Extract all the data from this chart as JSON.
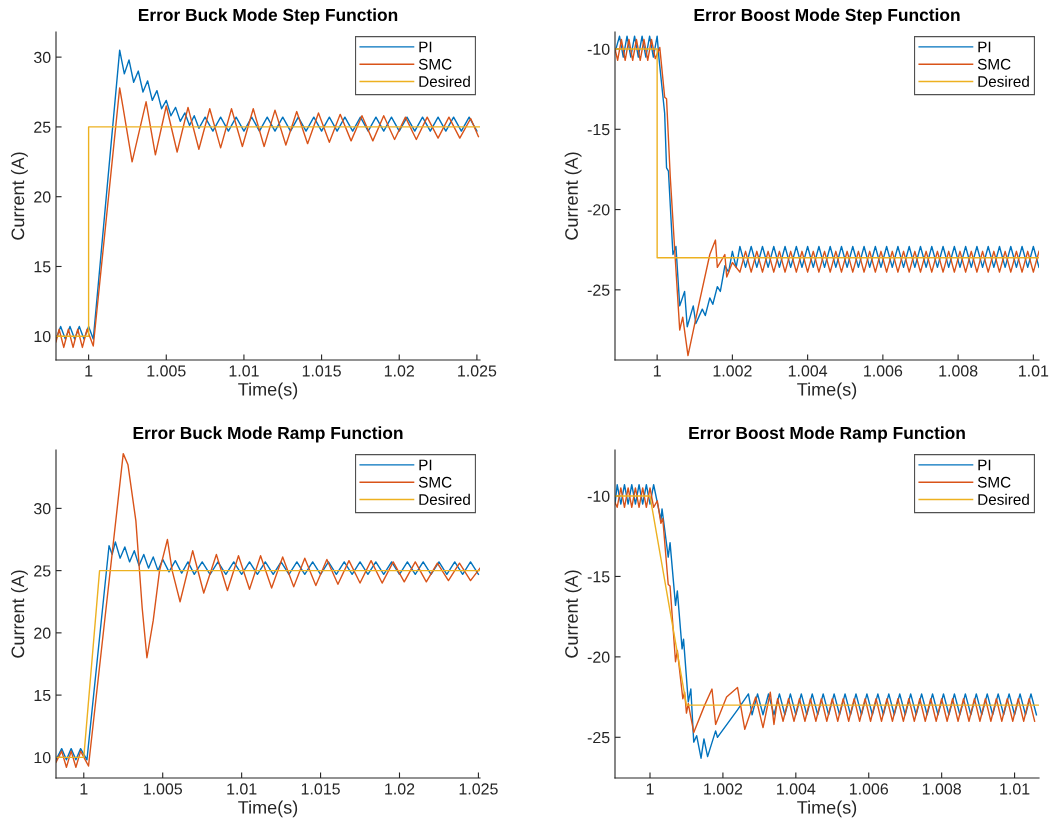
{
  "chart_data": [
    {
      "type": "line",
      "title": "Error Buck Mode Step Function",
      "xlabel": "Time(s)",
      "ylabel": "Current (A)",
      "xlim": [
        0.9979,
        1.0252
      ],
      "ylim": [
        8.3,
        31.8
      ],
      "xticks": [
        1,
        1.005,
        1.01,
        1.015,
        1.02,
        1.025
      ],
      "yticks": [
        10,
        15,
        20,
        25,
        30
      ],
      "legend": "top right",
      "grid": false,
      "series": [
        {
          "name": "PI",
          "color": "#0072bd",
          "x": [
            0.9979,
            0.9982,
            0.9985,
            0.9988,
            0.9991,
            0.9994,
            0.9997,
            1.0,
            1.0003,
            1.002,
            1.0023,
            1.0026,
            1.0029,
            1.0032,
            1.0035,
            1.0038,
            1.0041,
            1.0044,
            1.0047,
            1.005,
            1.0053,
            1.0056,
            1.0059,
            1.0062,
            1.0065,
            1.0068,
            1.0071,
            1.0075,
            1.008,
            1.0085,
            1.009,
            1.0095,
            1.01,
            1.0105,
            1.011,
            1.0115,
            1.012,
            1.0125,
            1.013,
            1.0135,
            1.014,
            1.0145,
            1.015,
            1.0155,
            1.016,
            1.0165,
            1.017,
            1.0175,
            1.018,
            1.0185,
            1.019,
            1.0195,
            1.02,
            1.0205,
            1.021,
            1.0215,
            1.022,
            1.0225,
            1.023,
            1.0235,
            1.024,
            1.0245,
            1.025
          ],
          "values": [
            9.8,
            10.7,
            9.8,
            10.7,
            9.8,
            10.7,
            9.8,
            10.7,
            9.8,
            30.5,
            28.8,
            29.8,
            28.2,
            29.0,
            27.5,
            28.3,
            26.9,
            27.6,
            26.3,
            26.9,
            25.8,
            26.4,
            25.4,
            26.0,
            25.1,
            25.8,
            24.9,
            25.7,
            24.7,
            25.7,
            24.7,
            25.7,
            24.7,
            25.7,
            24.7,
            25.7,
            24.7,
            25.7,
            24.7,
            25.7,
            24.7,
            25.7,
            24.7,
            25.7,
            24.7,
            25.7,
            24.7,
            25.7,
            24.7,
            25.7,
            24.7,
            25.7,
            24.7,
            25.7,
            24.7,
            25.7,
            24.7,
            25.7,
            24.7,
            25.7,
            24.7,
            25.7,
            24.7
          ]
        },
        {
          "name": "SMC",
          "color": "#d95319",
          "x": [
            0.9979,
            0.9981,
            0.9984,
            0.9987,
            0.999,
            0.9993,
            0.9996,
            0.9999,
            1.0003,
            1.002,
            1.0022,
            1.0028,
            1.0037,
            1.0043,
            1.005,
            1.0057,
            1.0064,
            1.0071,
            1.0078,
            1.0085,
            1.0092,
            1.0099,
            1.0106,
            1.0113,
            1.012,
            1.0127,
            1.0134,
            1.0141,
            1.0148,
            1.0155,
            1.0162,
            1.0169,
            1.0176,
            1.0183,
            1.019,
            1.0197,
            1.0204,
            1.0211,
            1.0218,
            1.0225,
            1.0232,
            1.0239,
            1.0246,
            1.0251
          ],
          "values": [
            9.6,
            10.5,
            9.2,
            10.5,
            9.2,
            10.5,
            9.2,
            10.5,
            9.3,
            27.8,
            26.5,
            22.5,
            26.8,
            23.0,
            26.5,
            23.2,
            26.4,
            23.4,
            26.3,
            23.5,
            26.3,
            23.6,
            26.3,
            23.6,
            26.2,
            23.7,
            26.1,
            23.8,
            26.0,
            23.9,
            25.9,
            24.0,
            25.8,
            24.0,
            25.8,
            24.1,
            25.7,
            24.1,
            25.7,
            24.2,
            25.7,
            24.2,
            25.6,
            24.3
          ]
        },
        {
          "name": "Desired",
          "color": "#edb120",
          "x": [
            0.9979,
            1.0,
            1.0,
            1.0252
          ],
          "values": [
            10,
            10,
            25,
            25
          ]
        }
      ]
    },
    {
      "type": "line",
      "title": "Error Boost Mode Step Function",
      "xlabel": "Time(s)",
      "ylabel": "Current (A)",
      "xlim": [
        0.99888,
        1.01015
      ],
      "ylim": [
        -29.37,
        -8.94
      ],
      "xticks": [
        1,
        1.002,
        1.004,
        1.006,
        1.008,
        1.01
      ],
      "yticks": [
        -25,
        -20,
        -15,
        -10
      ],
      "legend": "top right",
      "grid": false,
      "series": [
        {
          "name": "PI",
          "color": "#0072bd",
          "x": [
            0.99888,
            0.999,
            0.9991,
            0.9992,
            0.9993,
            0.9994,
            0.9995,
            0.9996,
            0.9997,
            0.9998,
            0.9999,
            1.0,
            1.00005,
            1.0002,
            1.00025,
            1.0003,
            1.00042,
            1.0005,
            1.0006,
            1.00073,
            1.0008,
            1.00096,
            1.00103,
            1.0012,
            1.00128,
            1.0014,
            1.00148,
            1.0016,
            1.00168,
            1.0018,
            1.0019,
            1.002,
            1.0021,
            1.0022,
            1.00235,
            1.0025,
            1.00265,
            1.0028,
            1.00295,
            1.0031,
            1.00325,
            1.0034,
            1.00355,
            1.0037,
            1.00385,
            1.004,
            1.00415,
            1.0043,
            1.00445,
            1.0046,
            1.00475,
            1.0049,
            1.00505,
            1.0052,
            1.00535,
            1.0055,
            1.00565,
            1.0058,
            1.00595,
            1.0061,
            1.00625,
            1.0064,
            1.00655,
            1.0067,
            1.00685,
            1.007,
            1.00715,
            1.0073,
            1.00745,
            1.0076,
            1.00775,
            1.0079,
            1.00805,
            1.0082,
            1.00835,
            1.0085,
            1.00865,
            1.0088,
            1.00895,
            1.0091,
            1.00925,
            1.0094,
            1.00955,
            1.0097,
            1.00985,
            1.01,
            1.01015
          ],
          "values": [
            -10.2,
            -9.2,
            -10.5,
            -9.2,
            -10.5,
            -9.2,
            -10.5,
            -9.2,
            -10.5,
            -9.2,
            -10.5,
            -9.2,
            -10.6,
            -14.0,
            -17.4,
            -17.6,
            -22.8,
            -22.3,
            -26.0,
            -25.1,
            -27.3,
            -26.0,
            -27.1,
            -26.2,
            -26.6,
            -25.5,
            -25.9,
            -24.8,
            -25.1,
            -23.5,
            -23.9,
            -22.6,
            -23.6,
            -22.3,
            -23.6,
            -22.3,
            -23.6,
            -22.3,
            -23.6,
            -22.3,
            -23.6,
            -22.3,
            -23.6,
            -22.3,
            -23.6,
            -22.3,
            -23.6,
            -22.3,
            -23.6,
            -22.3,
            -23.6,
            -22.3,
            -23.6,
            -22.3,
            -23.6,
            -22.3,
            -23.6,
            -22.3,
            -23.6,
            -22.3,
            -23.6,
            -22.3,
            -23.6,
            -22.3,
            -23.6,
            -22.3,
            -23.6,
            -22.3,
            -23.6,
            -22.3,
            -23.6,
            -22.3,
            -23.6,
            -22.3,
            -23.6,
            -22.3,
            -23.6,
            -22.3,
            -23.6,
            -22.3,
            -23.6,
            -22.3,
            -23.6,
            -22.3,
            -23.6,
            -22.3,
            -23.6
          ]
        },
        {
          "name": "SMC",
          "color": "#d95319",
          "x": [
            0.99888,
            0.99895,
            0.99905,
            0.99915,
            0.99925,
            0.99935,
            0.99945,
            0.99955,
            0.99965,
            0.99975,
            0.99985,
            0.99995,
            1.00007,
            1.0002,
            1.00025,
            1.00035,
            1.00048,
            1.0006,
            1.00068,
            1.00082,
            1.0011,
            1.0014,
            1.00155,
            1.0016,
            1.0018,
            1.00185,
            1.002,
            1.0022,
            1.00235,
            1.0025,
            1.00265,
            1.0028,
            1.00295,
            1.0031,
            1.00325,
            1.0034,
            1.00355,
            1.0037,
            1.00385,
            1.004,
            1.00415,
            1.0043,
            1.00445,
            1.0046,
            1.00475,
            1.0049,
            1.00505,
            1.0052,
            1.00535,
            1.0055,
            1.00565,
            1.0058,
            1.00595,
            1.0061,
            1.00625,
            1.0064,
            1.00655,
            1.0067,
            1.00685,
            1.007,
            1.00715,
            1.0073,
            1.00745,
            1.0076,
            1.00775,
            1.0079,
            1.00805,
            1.0082,
            1.00835,
            1.0085,
            1.00865,
            1.0088,
            1.00895,
            1.0091,
            1.00925,
            1.0094,
            1.00955,
            1.0097,
            1.00985,
            1.01,
            1.01015
          ],
          "values": [
            -10.0,
            -10.7,
            -9.4,
            -10.7,
            -9.4,
            -10.7,
            -9.4,
            -10.7,
            -9.4,
            -10.7,
            -9.4,
            -10.6,
            -9.9,
            -13.0,
            -13.1,
            -18.0,
            -23.0,
            -27.5,
            -26.7,
            -29.1,
            -26.0,
            -22.8,
            -21.9,
            -23.6,
            -22.8,
            -24.2,
            -23.3,
            -23.9,
            -22.6,
            -23.9,
            -22.6,
            -23.9,
            -22.6,
            -23.9,
            -22.6,
            -23.9,
            -22.6,
            -23.9,
            -22.6,
            -23.9,
            -22.6,
            -23.9,
            -22.6,
            -23.9,
            -22.6,
            -23.9,
            -22.6,
            -23.9,
            -22.6,
            -23.9,
            -22.6,
            -23.9,
            -22.6,
            -23.9,
            -22.6,
            -23.9,
            -22.6,
            -23.9,
            -22.6,
            -23.9,
            -22.6,
            -23.9,
            -22.6,
            -23.9,
            -22.6,
            -23.9,
            -22.6,
            -23.9,
            -22.6,
            -23.9,
            -22.6,
            -23.9,
            -22.6,
            -23.9,
            -22.6,
            -23.9,
            -22.6,
            -23.9,
            -22.6,
            -23.9,
            -22.6
          ]
        },
        {
          "name": "Desired",
          "color": "#edb120",
          "x": [
            0.99888,
            1.0,
            1.0,
            1.01015
          ],
          "values": [
            -10,
            -10,
            -23,
            -23
          ]
        }
      ]
    },
    {
      "type": "line",
      "title": "Error Buck Mode Ramp Function",
      "xlabel": "Time(s)",
      "ylabel": "Current (A)",
      "xlim": [
        0.99824,
        1.0251
      ],
      "ylim": [
        8.34,
        34.69
      ],
      "xticks": [
        1,
        1.005,
        1.01,
        1.015,
        1.02,
        1.025
      ],
      "yticks": [
        10,
        15,
        20,
        25,
        30
      ],
      "legend": "top right",
      "grid": false,
      "series": [
        {
          "name": "PI",
          "color": "#0072bd",
          "x": [
            0.99824,
            0.9986,
            0.9989,
            0.9992,
            0.9995,
            0.9998,
            1.0002,
            1.0016,
            1.0018,
            1.002,
            1.0023,
            1.0026,
            1.0029,
            1.0032,
            1.0035,
            1.0038,
            1.0041,
            1.0044,
            1.0047,
            1.005,
            1.0054,
            1.0058,
            1.0062,
            1.0066,
            1.007,
            1.0075,
            1.008,
            1.0085,
            1.009,
            1.0095,
            1.01,
            1.0105,
            1.011,
            1.0115,
            1.012,
            1.0125,
            1.013,
            1.0135,
            1.014,
            1.0145,
            1.015,
            1.0155,
            1.016,
            1.0165,
            1.017,
            1.0175,
            1.018,
            1.0185,
            1.019,
            1.0195,
            1.02,
            1.0205,
            1.021,
            1.0215,
            1.022,
            1.0225,
            1.023,
            1.0235,
            1.024,
            1.0245,
            1.025
          ],
          "values": [
            9.8,
            10.7,
            9.8,
            10.7,
            9.8,
            10.7,
            9.8,
            27.0,
            26.3,
            27.3,
            26.0,
            26.9,
            25.7,
            26.6,
            25.4,
            26.3,
            25.2,
            26.1,
            25.0,
            25.9,
            24.9,
            25.8,
            24.8,
            25.7,
            24.7,
            25.7,
            24.7,
            25.7,
            24.7,
            25.7,
            24.7,
            25.7,
            24.7,
            25.7,
            24.7,
            25.7,
            24.7,
            25.7,
            24.7,
            25.7,
            24.7,
            25.7,
            24.7,
            25.7,
            24.7,
            25.7,
            24.7,
            25.7,
            24.7,
            25.7,
            24.7,
            25.7,
            24.7,
            25.7,
            24.7,
            25.7,
            24.7,
            25.7,
            24.7,
            25.7,
            24.7
          ]
        },
        {
          "name": "SMC",
          "color": "#d95319",
          "x": [
            0.99824,
            0.9986,
            0.9989,
            0.9992,
            0.9995,
            0.9998,
            1.0003,
            1.0025,
            1.0028,
            1.0033,
            1.0037,
            1.004,
            1.0044,
            1.0048,
            1.0053,
            1.0056,
            1.0061,
            1.0069,
            1.0076,
            1.0084,
            1.0091,
            1.0098,
            1.0105,
            1.0112,
            1.0119,
            1.0126,
            1.0133,
            1.014,
            1.0147,
            1.0154,
            1.0161,
            1.0168,
            1.0175,
            1.0182,
            1.0189,
            1.0196,
            1.0203,
            1.021,
            1.0217,
            1.0224,
            1.0231,
            1.0238,
            1.0245,
            1.0251
          ],
          "values": [
            9.6,
            10.5,
            9.2,
            10.5,
            9.2,
            10.5,
            9.3,
            34.4,
            33.5,
            29.0,
            22.0,
            18.0,
            21.0,
            25.0,
            27.5,
            25.0,
            22.5,
            26.6,
            23.2,
            26.3,
            23.4,
            26.2,
            23.5,
            26.2,
            23.6,
            26.1,
            23.7,
            26.0,
            23.8,
            25.9,
            23.9,
            25.8,
            24.0,
            25.8,
            24.0,
            25.7,
            24.1,
            25.7,
            24.1,
            25.6,
            24.2,
            25.6,
            24.2,
            25.2
          ]
        },
        {
          "name": "Desired",
          "color": "#edb120",
          "x": [
            0.99824,
            1.0,
            1.001,
            1.0251
          ],
          "values": [
            10,
            10,
            25,
            25
          ]
        }
      ]
    },
    {
      "type": "line",
      "title": "Error Boost Mode Ramp Function",
      "xlabel": "Time(s)",
      "ylabel": "Current (A)",
      "xlim": [
        0.99904,
        1.01067
      ],
      "ylim": [
        -27.53,
        -7.14
      ],
      "xticks": [
        1,
        1.002,
        1.004,
        1.006,
        1.008,
        1.01
      ],
      "yticks": [
        -25,
        -20,
        -15,
        -10
      ],
      "legend": "top right",
      "grid": false,
      "series": [
        {
          "name": "PI",
          "color": "#0072bd",
          "x": [
            0.99904,
            0.9991,
            0.9992,
            0.9993,
            0.9994,
            0.9995,
            0.9996,
            0.9997,
            0.9998,
            0.9999,
            1.0,
            1.0001,
            1.0003,
            1.00033,
            1.0005,
            1.00055,
            1.0007,
            1.00075,
            1.00088,
            1.00092,
            1.00105,
            1.00112,
            1.0012,
            1.00128,
            1.0014,
            1.00148,
            1.00158,
            1.0018,
            1.00185,
            1.0024,
            1.0027,
            1.0028,
            1.00295,
            1.0031,
            1.00325,
            1.0034,
            1.00355,
            1.0037,
            1.00385,
            1.004,
            1.00415,
            1.0043,
            1.00445,
            1.0046,
            1.00475,
            1.0049,
            1.00505,
            1.0052,
            1.00535,
            1.0055,
            1.00565,
            1.0058,
            1.00595,
            1.0061,
            1.00625,
            1.0064,
            1.00655,
            1.0067,
            1.00685,
            1.007,
            1.00715,
            1.0073,
            1.00745,
            1.0076,
            1.00775,
            1.0079,
            1.00805,
            1.0082,
            1.00835,
            1.0085,
            1.00865,
            1.0088,
            1.00895,
            1.0091,
            1.00925,
            1.0094,
            1.00955,
            1.0097,
            1.00985,
            1.01,
            1.01015,
            1.0103,
            1.01045,
            1.0106
          ],
          "values": [
            -10.5,
            -9.3,
            -10.5,
            -9.3,
            -10.5,
            -9.3,
            -10.5,
            -9.3,
            -10.5,
            -9.3,
            -10.5,
            -9.3,
            -11.5,
            -10.8,
            -13.8,
            -12.9,
            -16.8,
            -15.9,
            -19.5,
            -18.9,
            -22.8,
            -22.0,
            -25.3,
            -24.9,
            -26.3,
            -25.1,
            -26.2,
            -24.6,
            -25.0,
            -23.3,
            -22.3,
            -23.6,
            -22.3,
            -23.6,
            -22.3,
            -23.6,
            -22.3,
            -23.6,
            -22.3,
            -23.6,
            -22.3,
            -23.6,
            -22.3,
            -23.6,
            -22.3,
            -23.6,
            -22.3,
            -23.6,
            -22.3,
            -23.6,
            -22.3,
            -23.6,
            -22.3,
            -23.6,
            -22.3,
            -23.6,
            -22.3,
            -23.6,
            -22.3,
            -23.6,
            -22.3,
            -23.6,
            -22.3,
            -23.6,
            -22.3,
            -23.6,
            -22.3,
            -23.6,
            -22.3,
            -23.6,
            -22.3,
            -23.6,
            -22.3,
            -23.6,
            -22.3,
            -23.6,
            -22.3,
            -23.6,
            -22.3,
            -23.6,
            -22.3,
            -23.6,
            -22.3,
            -23.6
          ]
        },
        {
          "name": "SMC",
          "color": "#d95319",
          "x": [
            0.99904,
            0.9991,
            0.9992,
            0.9993,
            0.9994,
            0.9995,
            0.9996,
            0.9997,
            0.9998,
            0.9999,
            1.0,
            1.0001,
            1.0002,
            1.0003,
            1.00035,
            1.0005,
            1.00055,
            1.0007,
            1.00075,
            1.0009,
            1.00095,
            1.001,
            1.00105,
            1.0012,
            1.0015,
            1.0017,
            1.0018,
            1.0021,
            1.0024,
            1.0026,
            1.0029,
            1.0031,
            1.0033,
            1.0034,
            1.0035,
            1.00365,
            1.0038,
            1.00395,
            1.0041,
            1.00425,
            1.0044,
            1.00455,
            1.0047,
            1.00485,
            1.005,
            1.00515,
            1.0053,
            1.00545,
            1.0056,
            1.00575,
            1.0059,
            1.00605,
            1.0062,
            1.00635,
            1.0065,
            1.00665,
            1.0068,
            1.00695,
            1.0071,
            1.00725,
            1.0074,
            1.00755,
            1.0077,
            1.00785,
            1.008,
            1.00815,
            1.0083,
            1.00845,
            1.0086,
            1.00875,
            1.0089,
            1.00905,
            1.0092,
            1.00935,
            1.0095,
            1.00965,
            1.0098,
            1.00995,
            1.0101,
            1.01025,
            1.0104,
            1.01055
          ],
          "values": [
            -10.4,
            -10.7,
            -9.5,
            -10.7,
            -9.5,
            -10.7,
            -9.5,
            -10.7,
            -9.5,
            -10.7,
            -9.5,
            -10.7,
            -10.3,
            -11.7,
            -11.4,
            -15.5,
            -15.6,
            -20.3,
            -19.6,
            -22.6,
            -22.2,
            -23.5,
            -22.9,
            -24.7,
            -23.0,
            -22.0,
            -24.2,
            -22.5,
            -21.9,
            -24.5,
            -22.5,
            -24.4,
            -22.2,
            -24.2,
            -22.6,
            -24.0,
            -22.6,
            -24.0,
            -22.6,
            -24.0,
            -22.6,
            -24.0,
            -22.6,
            -24.0,
            -22.6,
            -24.0,
            -22.6,
            -24.0,
            -22.6,
            -24.0,
            -22.6,
            -24.0,
            -22.6,
            -24.0,
            -22.6,
            -24.0,
            -22.6,
            -24.0,
            -22.6,
            -24.0,
            -22.6,
            -24.0,
            -22.6,
            -24.0,
            -22.6,
            -24.0,
            -22.6,
            -24.0,
            -22.6,
            -24.0,
            -22.6,
            -24.0,
            -22.6,
            -24.0,
            -22.6,
            -24.0,
            -22.6,
            -24.0,
            -22.6,
            -24.0,
            -22.6,
            -24.0
          ]
        },
        {
          "name": "Desired",
          "color": "#edb120",
          "x": [
            0.99904,
            1.0,
            1.001,
            1.01067
          ],
          "values": [
            -10,
            -10,
            -23,
            -23
          ]
        }
      ]
    }
  ]
}
